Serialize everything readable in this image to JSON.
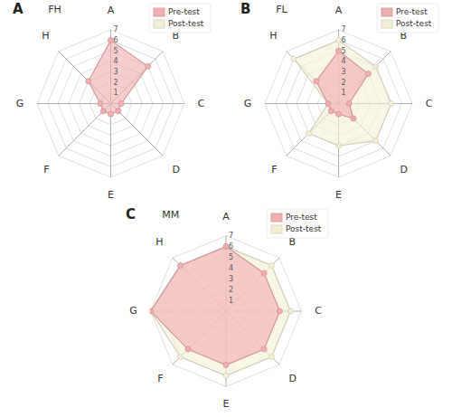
{
  "chart_data": [
    {
      "type": "radar",
      "title": "FH",
      "annotations": [
        "A"
      ],
      "categories": [
        "A",
        "B",
        "C",
        "D",
        "E",
        "F",
        "G",
        "H"
      ],
      "series": [
        {
          "name": "Pre-test",
          "color": "#f2aeae",
          "marker": "circle",
          "values": [
            6,
            5,
            1,
            1,
            1,
            1,
            1,
            3
          ]
        },
        {
          "name": "Post-test",
          "color": "#f5f0d5",
          "marker": "none",
          "values": [
            0.05,
            0.05,
            0.05,
            0.05,
            0.05,
            0.05,
            0.05,
            0.05
          ]
        }
      ],
      "ylim": [
        0,
        7
      ],
      "yticks": [
        1,
        2,
        3,
        4,
        5,
        6,
        7
      ],
      "grid": true,
      "legend": "upper right"
    },
    {
      "type": "radar",
      "title": "FL",
      "annotations": [
        "B"
      ],
      "categories": [
        "A",
        "B",
        "C",
        "D",
        "E",
        "F",
        "G",
        "H"
      ],
      "series": [
        {
          "name": "Pre-test",
          "color": "#f2aeae",
          "marker": "circle",
          "values": [
            5,
            4,
            1,
            2,
            1,
            1,
            1,
            3
          ]
        },
        {
          "name": "Post-test",
          "color": "#f5f0d5",
          "marker": "circle",
          "values": [
            6,
            5,
            5,
            5,
            4,
            4,
            1,
            6
          ]
        }
      ],
      "ylim": [
        0,
        7
      ],
      "yticks": [
        1,
        2,
        3,
        4,
        5,
        6,
        7
      ],
      "grid": true,
      "legend": "upper right"
    },
    {
      "type": "radar",
      "title": "MM",
      "annotations": [
        "C"
      ],
      "categories": [
        "A",
        "B",
        "C",
        "D",
        "E",
        "F",
        "G",
        "H"
      ],
      "series": [
        {
          "name": "Pre-test",
          "color": "#f2aeae",
          "marker": "circle",
          "values": [
            6,
            5,
            5,
            5,
            5,
            5,
            7,
            6
          ]
        },
        {
          "name": "Post-test",
          "color": "#f5f0d5",
          "marker": "circle",
          "values": [
            6,
            6,
            6,
            6,
            6,
            6,
            7,
            6
          ]
        }
      ],
      "ylim": [
        0,
        7
      ],
      "yticks": [
        1,
        2,
        3,
        4,
        5,
        6,
        7
      ],
      "grid": true,
      "legend": "upper right"
    }
  ]
}
